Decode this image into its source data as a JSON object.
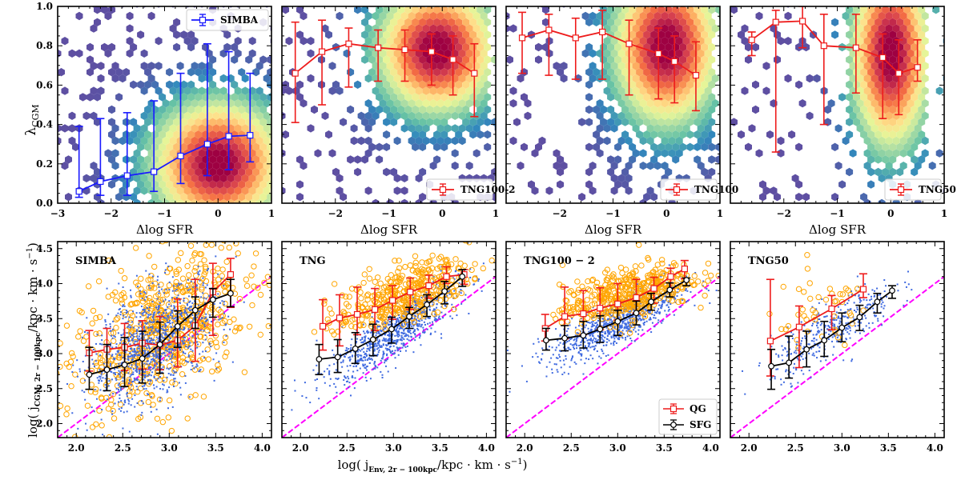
{
  "chart_data": [
    {
      "type": "scatter",
      "subtype": "hexbin-density-with-binned-median",
      "row": "top",
      "title": "",
      "xlabel": "Δlog SFR",
      "ylabel": "λ_CGM",
      "ylabel_main": "λ",
      "ylabel_sub": "CGM",
      "xlim": [
        -3,
        1
      ],
      "ylim": [
        0,
        1
      ],
      "xticks": [
        -3,
        -2,
        -1,
        0,
        1
      ],
      "xtick_labels": [
        "−3",
        "−2",
        "−1",
        "0",
        "1"
      ],
      "yticks": [
        0.0,
        0.2,
        0.4,
        0.6,
        0.8,
        1.0
      ],
      "ytick_labels": [
        "0.0",
        "0.2",
        "0.4",
        "0.6",
        "0.8",
        "1.0"
      ],
      "legend": {
        "label": "SIMBA",
        "placement": "top-right"
      },
      "series_color": "#1a1aff",
      "density_peak": {
        "x": 0.0,
        "y": 0.2,
        "spread_x": 0.5,
        "spread_y": 0.12
      },
      "density_extent": {
        "x": [
          -3,
          1
        ],
        "y": [
          0,
          1
        ]
      },
      "series": [
        {
          "name": "SIMBA",
          "x": [
            -2.6,
            -2.2,
            -1.7,
            -1.2,
            -0.7,
            -0.2,
            0.2,
            0.6
          ],
          "y": [
            0.06,
            0.11,
            0.14,
            0.16,
            0.24,
            0.3,
            0.34,
            0.345
          ],
          "yerr_low": [
            0.03,
            0.04,
            0.04,
            0.06,
            0.1,
            0.14,
            0.17,
            0.21
          ],
          "yerr_high": [
            0.39,
            0.43,
            0.46,
            0.52,
            0.66,
            0.81,
            0.77,
            0.66
          ]
        }
      ]
    },
    {
      "type": "scatter",
      "subtype": "hexbin-density-with-binned-median",
      "row": "top",
      "xlabel": "Δlog SFR",
      "xlim": [
        -3,
        1
      ],
      "ylim": [
        0,
        1
      ],
      "xticks": [
        -2,
        -1,
        0,
        1
      ],
      "xtick_labels": [
        "−2",
        "−1",
        "0",
        "1"
      ],
      "legend": {
        "label": "TNG100-2",
        "placement": "bottom-right"
      },
      "series_color": "#ee1c1c",
      "density_peak": {
        "x": -0.1,
        "y": 0.78,
        "spread_x": 0.45,
        "spread_y": 0.12
      },
      "density_extent": {
        "x": [
          -1.5,
          0.9
        ],
        "y": [
          0.1,
          1
        ]
      },
      "series": [
        {
          "name": "TNG100-2",
          "x": [
            -2.75,
            -2.25,
            -1.75,
            -1.2,
            -0.7,
            -0.2,
            0.2,
            0.6
          ],
          "y": [
            0.66,
            0.77,
            0.81,
            0.79,
            0.78,
            0.77,
            0.73,
            0.66
          ],
          "yerr_low": [
            0.41,
            0.5,
            0.59,
            0.62,
            0.62,
            0.6,
            0.55,
            0.44
          ],
          "yerr_high": [
            0.92,
            0.93,
            0.89,
            0.88,
            0.88,
            0.86,
            0.85,
            0.81
          ]
        }
      ]
    },
    {
      "type": "scatter",
      "subtype": "hexbin-density-with-binned-median",
      "row": "top",
      "xlabel": "Δlog SFR",
      "xlim": [
        -3,
        1
      ],
      "ylim": [
        0,
        1
      ],
      "xticks": [
        -2,
        -1,
        0,
        1
      ],
      "xtick_labels": [
        "−2",
        "−1",
        "0",
        "1"
      ],
      "legend": {
        "label": "TNG100",
        "placement": "bottom-right"
      },
      "series_color": "#ee1c1c",
      "density_peak": {
        "x": 0.0,
        "y": 0.8,
        "spread_x": 0.4,
        "spread_y": 0.15
      },
      "density_extent": {
        "x": [
          -1.5,
          0.9
        ],
        "y": [
          0.05,
          1
        ]
      },
      "series": [
        {
          "name": "TNG100",
          "x": [
            -2.7,
            -2.2,
            -1.7,
            -1.2,
            -0.7,
            -0.15,
            0.15,
            0.55
          ],
          "y": [
            0.84,
            0.88,
            0.84,
            0.87,
            0.81,
            0.76,
            0.72,
            0.65
          ],
          "yerr_low": [
            0.66,
            0.65,
            0.63,
            0.63,
            0.55,
            0.53,
            0.51,
            0.47
          ],
          "yerr_high": [
            0.97,
            0.96,
            0.94,
            0.98,
            0.93,
            0.89,
            0.85,
            0.82
          ]
        }
      ]
    },
    {
      "type": "scatter",
      "subtype": "hexbin-density-with-binned-median",
      "row": "top",
      "xlabel": "Δlog SFR",
      "xlim": [
        -3,
        1
      ],
      "ylim": [
        0,
        1
      ],
      "xticks": [
        -2,
        -1,
        0,
        1
      ],
      "xtick_labels": [
        "−2",
        "−1",
        "0",
        "1"
      ],
      "legend": {
        "label": "TNG50",
        "placement": "bottom-right"
      },
      "series_color": "#ee1c1c",
      "density_peak": {
        "x": 0.0,
        "y": 0.76,
        "spread_x": 0.3,
        "spread_y": 0.18
      },
      "density_extent": {
        "x": [
          -0.8,
          0.7
        ],
        "y": [
          0.15,
          1
        ]
      },
      "series": [
        {
          "name": "TNG50",
          "x": [
            -2.6,
            -2.15,
            -1.65,
            -1.25,
            -0.65,
            -0.15,
            0.15,
            0.5
          ],
          "y": [
            0.83,
            0.92,
            0.925,
            0.8,
            0.79,
            0.74,
            0.66,
            0.69
          ],
          "yerr_low": [
            0.75,
            0.26,
            0.79,
            0.4,
            0.56,
            0.43,
            0.45,
            0.62
          ],
          "yerr_high": [
            0.87,
            0.98,
            1.0,
            0.96,
            0.96,
            0.86,
            0.83,
            0.83
          ]
        }
      ]
    },
    {
      "type": "scatter",
      "row": "bottom",
      "panel_label": "SIMBA",
      "xlabel": "log( j_Env,2r−100kpc / kpc·km·s⁻¹)",
      "ylabel": "log( j_CGM,2r−100kpc / kpc·km·s⁻¹)",
      "xlim": [
        1.8,
        4.1
      ],
      "ylim": [
        1.8,
        4.6
      ],
      "xticks": [
        2.0,
        2.5,
        3.0,
        3.5,
        4.0
      ],
      "xtick_labels": [
        "2.0",
        "2.5",
        "3.0",
        "3.5",
        "4.0"
      ],
      "yticks": [
        2.0,
        2.5,
        3.0,
        3.5,
        4.0,
        4.5
      ],
      "ytick_labels": [
        "2.0",
        "2.5",
        "3.0",
        "3.5",
        "4.0",
        "4.5"
      ],
      "one_to_one_line": {
        "x": [
          1.8,
          4.1
        ],
        "y": [
          1.8,
          4.1
        ],
        "color": "#ff00ff",
        "style": "dashed"
      },
      "cloud_sfg": {
        "cx": 2.85,
        "cy": 3.15,
        "sx": 0.35,
        "sy": 0.45,
        "rho": 0.5,
        "n": 1100
      },
      "cloud_qg": {
        "cx": 2.9,
        "cy": 3.3,
        "sx": 0.45,
        "sy": 0.55,
        "rho": 0.45,
        "n": 650
      },
      "series": [
        {
          "name": "QG",
          "color": "#ee1c1c",
          "marker": "square",
          "x": [
            2.14,
            2.33,
            2.52,
            2.71,
            2.9,
            3.09,
            3.28,
            3.47,
            3.66
          ],
          "y": [
            3.01,
            3.06,
            3.09,
            3.15,
            3.12,
            3.19,
            3.4,
            3.88,
            4.13
          ],
          "yerr_low": [
            2.75,
            2.77,
            2.76,
            2.78,
            2.77,
            2.81,
            2.89,
            3.26,
            3.66
          ],
          "yerr_high": [
            3.33,
            3.36,
            3.43,
            3.47,
            3.53,
            3.78,
            4.06,
            4.29,
            4.36
          ]
        },
        {
          "name": "SFG",
          "color": "#000000",
          "marker": "circle",
          "x": [
            2.14,
            2.33,
            2.52,
            2.71,
            2.9,
            3.09,
            3.28,
            3.47,
            3.66
          ],
          "y": [
            2.7,
            2.77,
            2.84,
            2.93,
            3.13,
            3.39,
            3.62,
            3.77,
            3.86
          ],
          "yerr_low": [
            2.49,
            2.47,
            2.53,
            2.58,
            2.72,
            3.09,
            3.36,
            3.52,
            3.67
          ],
          "yerr_high": [
            3.09,
            3.13,
            3.23,
            3.32,
            3.45,
            3.61,
            3.81,
            3.93,
            4.06
          ]
        }
      ]
    },
    {
      "type": "scatter",
      "row": "bottom",
      "panel_label": "TNG",
      "xlim": [
        1.8,
        4.1
      ],
      "ylim": [
        1.8,
        4.6
      ],
      "xticks": [
        2.0,
        2.5,
        3.0,
        3.5,
        4.0
      ],
      "xtick_labels": [
        "2.0",
        "2.5",
        "3.0",
        "3.5",
        "4.0"
      ],
      "one_to_one_line": {
        "x": [
          1.8,
          4.1
        ],
        "y": [
          1.8,
          4.1
        ],
        "color": "#ff00ff",
        "style": "dashed"
      },
      "cloud_sfg": {
        "cx": 3.0,
        "cy": 3.3,
        "sx": 0.35,
        "sy": 0.35,
        "rho": 0.85,
        "n": 900
      },
      "cloud_qg": {
        "cx": 3.1,
        "cy": 3.85,
        "sx": 0.35,
        "sy": 0.25,
        "rho": 0.6,
        "n": 380
      },
      "series": [
        {
          "name": "QG",
          "color": "#ee1c1c",
          "marker": "square",
          "x": [
            2.24,
            2.42,
            2.61,
            2.8,
            2.99,
            3.18,
            3.38,
            3.57,
            3.76
          ],
          "y": [
            3.39,
            3.51,
            3.56,
            3.63,
            3.76,
            3.88,
            3.97,
            4.1,
            4.13
          ],
          "yerr_low": [
            3.05,
            3.11,
            3.27,
            3.33,
            3.49,
            3.63,
            3.79,
            4.0,
            3.99
          ],
          "yerr_high": [
            3.77,
            3.84,
            3.95,
            3.93,
            3.97,
            4.08,
            4.12,
            4.24,
            4.2
          ]
        },
        {
          "name": "SFG",
          "color": "#000000",
          "marker": "circle",
          "x": [
            2.2,
            2.4,
            2.59,
            2.78,
            2.98,
            3.17,
            3.36,
            3.55,
            3.74
          ],
          "y": [
            2.92,
            2.95,
            3.07,
            3.2,
            3.35,
            3.53,
            3.7,
            3.89,
            4.1
          ],
          "yerr_low": [
            2.7,
            2.73,
            2.86,
            2.97,
            3.15,
            3.36,
            3.53,
            3.71,
            3.96
          ],
          "yerr_high": [
            3.13,
            3.2,
            3.3,
            3.42,
            3.52,
            3.66,
            3.84,
            4.03,
            4.2
          ]
        }
      ]
    },
    {
      "type": "scatter",
      "row": "bottom",
      "panel_label": "TNG100 − 2",
      "xlim": [
        1.8,
        4.1
      ],
      "ylim": [
        1.8,
        4.6
      ],
      "xticks": [
        2.0,
        2.5,
        3.0,
        3.5,
        4.0
      ],
      "xtick_labels": [
        "2.0",
        "2.5",
        "3.0",
        "3.5",
        "4.0"
      ],
      "one_to_one_line": {
        "x": [
          1.8,
          4.1
        ],
        "y": [
          1.8,
          4.1
        ],
        "color": "#ff00ff",
        "style": "dashed"
      },
      "legend": {
        "entries": [
          "QG",
          "SFG"
        ],
        "placement": "bottom-right"
      },
      "cloud_sfg": {
        "cx": 3.0,
        "cy": 3.45,
        "sx": 0.35,
        "sy": 0.28,
        "rho": 0.8,
        "n": 900
      },
      "cloud_qg": {
        "cx": 3.1,
        "cy": 3.85,
        "sx": 0.35,
        "sy": 0.22,
        "rho": 0.55,
        "n": 420
      },
      "series": [
        {
          "name": "QG",
          "color": "#ee1c1c",
          "marker": "square",
          "x": [
            2.22,
            2.43,
            2.63,
            2.81,
            3.0,
            3.2,
            3.39,
            3.57,
            3.72
          ],
          "y": [
            3.36,
            3.53,
            3.57,
            3.65,
            3.71,
            3.8,
            3.93,
            4.1,
            4.21
          ],
          "yerr_low": [
            3.18,
            3.21,
            3.27,
            3.34,
            3.48,
            3.58,
            3.72,
            3.93,
            4.07
          ],
          "yerr_high": [
            3.56,
            3.95,
            3.9,
            3.94,
            4.0,
            4.06,
            4.09,
            4.22,
            4.33
          ]
        },
        {
          "name": "SFG",
          "color": "#000000",
          "marker": "circle",
          "x": [
            2.23,
            2.43,
            2.63,
            2.81,
            3.0,
            3.2,
            3.36,
            3.56,
            3.74
          ],
          "y": [
            3.19,
            3.22,
            3.26,
            3.35,
            3.46,
            3.58,
            3.74,
            3.91,
            4.05
          ],
          "yerr_low": [
            3.05,
            3.04,
            3.08,
            3.16,
            3.26,
            3.41,
            3.62,
            3.81,
            3.97
          ],
          "yerr_high": [
            3.36,
            3.4,
            3.46,
            3.54,
            3.62,
            3.75,
            3.86,
            4.01,
            4.08
          ]
        }
      ]
    },
    {
      "type": "scatter",
      "row": "bottom",
      "panel_label": "TNG50",
      "xlim": [
        1.8,
        4.1
      ],
      "ylim": [
        1.8,
        4.6
      ],
      "xticks": [
        2.0,
        2.5,
        3.0,
        3.5,
        4.0
      ],
      "xtick_labels": [
        "2.0",
        "2.5",
        "3.0",
        "3.5",
        "4.0"
      ],
      "one_to_one_line": {
        "x": [
          1.8,
          4.1
        ],
        "y": [
          1.8,
          4.1
        ],
        "color": "#ff00ff",
        "style": "dashed"
      },
      "cloud_sfg": {
        "cx": 2.9,
        "cy": 3.35,
        "sx": 0.33,
        "sy": 0.33,
        "rho": 0.8,
        "n": 380
      },
      "cloud_qg": {
        "cx": 2.75,
        "cy": 3.55,
        "sx": 0.3,
        "sy": 0.3,
        "rho": 0.4,
        "n": 45
      },
      "series": [
        {
          "name": "QG",
          "color": "#ee1c1c",
          "marker": "square",
          "x": [
            2.23,
            2.54,
            2.89,
            3.23
          ],
          "y": [
            3.18,
            3.38,
            3.64,
            3.92
          ],
          "yerr_low": [
            2.68,
            2.8,
            3.34,
            3.8
          ],
          "yerr_high": [
            4.06,
            3.68,
            3.83,
            4.14
          ]
        },
        {
          "name": "SFG",
          "color": "#000000",
          "marker": "circle",
          "x": [
            2.24,
            2.43,
            2.62,
            2.81,
            3.0,
            3.19,
            3.38,
            3.54
          ],
          "y": [
            2.82,
            2.87,
            3.06,
            3.19,
            3.37,
            3.52,
            3.74,
            3.9
          ],
          "yerr_low": [
            2.49,
            2.65,
            2.81,
            2.96,
            3.17,
            3.33,
            3.58,
            3.79
          ],
          "yerr_high": [
            3.06,
            3.25,
            3.32,
            3.46,
            3.58,
            3.69,
            3.86,
            3.97
          ]
        }
      ]
    }
  ],
  "figure": {
    "top_row_xlabel": "Δlog SFR",
    "bottom_ylabel_prefix": "log( j",
    "bottom_ylabel_sub": "CGM, 2r − 100kpc",
    "bottom_ylabel_suffix": "/kpc · km · s",
    "bottom_xlabel_prefix": "log( j",
    "bottom_xlabel_sub": "Env, 2r − 100kpc",
    "bottom_xlabel_suffix": "/kpc · km · s",
    "exponent": "−1",
    "close_paren": ")",
    "colors": {
      "simba_line": "#1a1aff",
      "tng_line": "#ee1c1c",
      "sfg_line": "#000000",
      "sfg_points": "#3f6ae0",
      "qg_points": "#ffa500",
      "one_to_one": "#ff00ff",
      "spectral_colormap": [
        "#5e4fa2",
        "#3288bd",
        "#66c2a5",
        "#abdda4",
        "#e6f598",
        "#fee08b",
        "#fdae61",
        "#f46d43",
        "#d53e4f",
        "#9e0142"
      ]
    }
  }
}
